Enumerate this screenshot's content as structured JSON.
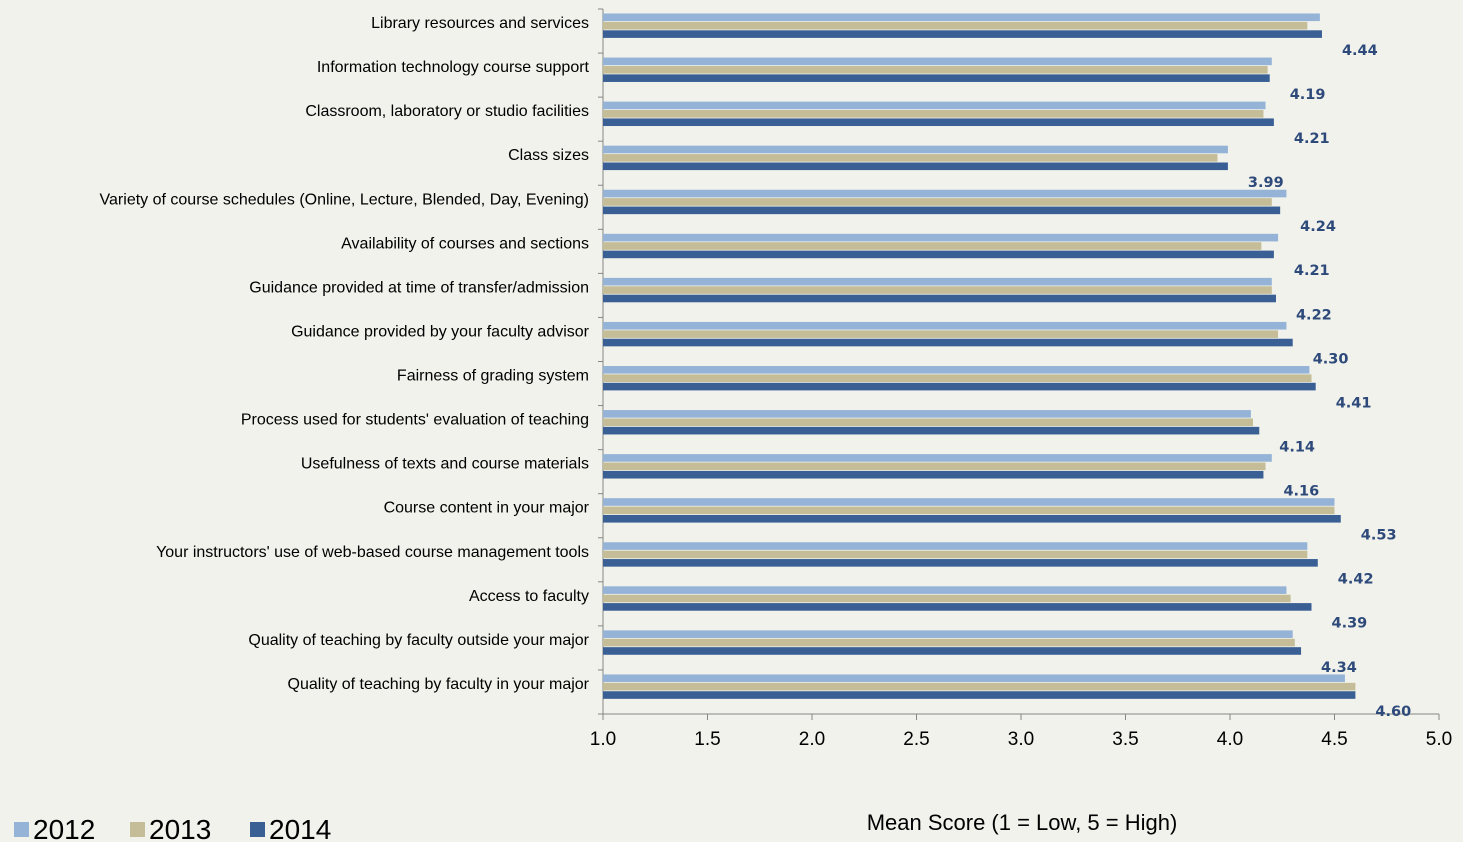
{
  "chart_data": {
    "type": "bar",
    "orientation": "horizontal",
    "xlabel": "Mean Score (1 = Low, 5 = High)",
    "xlim": [
      1.0,
      5.0
    ],
    "x_ticks": [
      "1.0",
      "1.5",
      "2.0",
      "2.5",
      "3.0",
      "3.5",
      "4.0",
      "4.5",
      "5.0"
    ],
    "legend_position": "bottom-left",
    "categories": [
      "Library resources and services",
      "Information technology course support",
      "Classroom, laboratory or studio facilities",
      "Class sizes",
      "Variety of course schedules (Online, Lecture, Blended, Day, Evening)",
      "Availability of courses and sections",
      "Guidance provided at time of transfer/admission",
      "Guidance provided by your faculty advisor",
      "Fairness of grading system",
      "Process used for students' evaluation of teaching",
      "Usefulness of texts and course materials",
      "Course content in your major",
      "Your instructors' use of web-based course management tools",
      "Access to faculty",
      "Quality of teaching by faculty outside your major",
      "Quality of teaching by faculty in your major"
    ],
    "series": [
      {
        "name": "2012",
        "color": "#95b3d7",
        "values": [
          4.43,
          4.2,
          4.17,
          3.99,
          4.27,
          4.23,
          4.2,
          4.27,
          4.38,
          4.1,
          4.2,
          4.5,
          4.37,
          4.27,
          4.3,
          4.55
        ]
      },
      {
        "name": "2013",
        "color": "#c4bd97",
        "values": [
          4.37,
          4.18,
          4.16,
          3.94,
          4.2,
          4.15,
          4.2,
          4.23,
          4.39,
          4.11,
          4.17,
          4.5,
          4.37,
          4.29,
          4.31,
          4.6
        ]
      },
      {
        "name": "2014",
        "color": "#3a5f95",
        "values": [
          4.44,
          4.19,
          4.21,
          3.99,
          4.24,
          4.21,
          4.22,
          4.3,
          4.41,
          4.14,
          4.16,
          4.53,
          4.42,
          4.39,
          4.34,
          4.6
        ]
      }
    ],
    "data_labels": [
      "4.44",
      "4.19",
      "4.21",
      "3.99",
      "4.24",
      "4.21",
      "4.22",
      "4.30",
      "4.41",
      "4.14",
      "4.16",
      "4.53",
      "4.42",
      "4.39",
      "4.34",
      "4.60"
    ]
  }
}
